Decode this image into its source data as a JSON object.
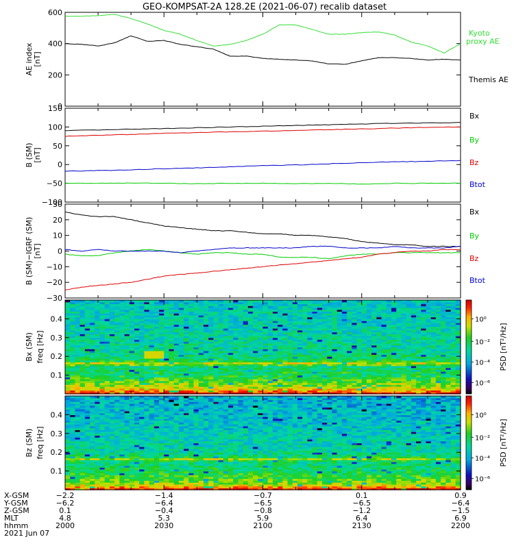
{
  "title": "GEO-KOMPSAT-2A 128.2E (2021-06-07) recalib dataset",
  "colors": {
    "black": "#000000",
    "red": "#dd0000",
    "blue": "#0000cc",
    "green": "#00cc00",
    "lightgreen": "#33dd33"
  },
  "chart_data": [
    {
      "type": "line",
      "panel": "ae",
      "ylabel": "AE index",
      "yunit": "[nT]",
      "ylim": [
        0,
        600
      ],
      "yticks": [
        "0",
        "200",
        "400",
        "600"
      ],
      "x": [
        0,
        5,
        10,
        15,
        20,
        25,
        30,
        35,
        40,
        45,
        50,
        55,
        60,
        65,
        70,
        75,
        80,
        85,
        90,
        95,
        100,
        105,
        110,
        115,
        120
      ],
      "series": [
        {
          "name": "Kyoto\nproxy AE",
          "legend_lines": [
            "Kyoto",
            "proxy AE"
          ],
          "color": "#33dd33",
          "values": [
            575,
            575,
            578,
            588,
            560,
            525,
            485,
            460,
            420,
            385,
            395,
            420,
            460,
            520,
            520,
            490,
            460,
            460,
            470,
            475,
            455,
            410,
            385,
            340,
            400
          ]
        },
        {
          "name": "Themis AE",
          "legend_lines": [
            "Themis AE"
          ],
          "color": "#000000",
          "values": [
            400,
            395,
            385,
            405,
            450,
            415,
            420,
            395,
            380,
            365,
            320,
            320,
            305,
            300,
            295,
            290,
            270,
            268,
            290,
            310,
            310,
            305,
            295,
            300,
            295
          ]
        }
      ]
    },
    {
      "type": "line",
      "panel": "bsm",
      "ylabel": "B (SM)",
      "yunit": "[nT]",
      "ylim": [
        -100,
        150
      ],
      "yticks": [
        "−100",
        "−50",
        "0",
        "50",
        "100",
        "150"
      ],
      "x": [
        0,
        10,
        20,
        30,
        40,
        50,
        60,
        70,
        80,
        90,
        100,
        110,
        120
      ],
      "series": [
        {
          "name": "Bx",
          "color": "#000000",
          "values": [
            90,
            92,
            94,
            96,
            98,
            100,
            102,
            104,
            106,
            108,
            110,
            111,
            112
          ]
        },
        {
          "name": "By",
          "color": "#00cc00",
          "values": [
            -50,
            -50,
            -49,
            -50,
            -51,
            -50,
            -50,
            -51,
            -50,
            -52,
            -50,
            -50,
            -50
          ]
        },
        {
          "name": "Bz",
          "color": "#dd0000",
          "values": [
            75,
            78,
            80,
            83,
            85,
            87,
            89,
            91,
            93,
            95,
            97,
            99,
            100
          ]
        },
        {
          "name": "Btot",
          "color": "#0000cc",
          "values": [
            -18,
            -16,
            -14,
            -11,
            -9,
            -6,
            -3,
            -1,
            2,
            5,
            7,
            9,
            11
          ]
        }
      ]
    },
    {
      "type": "line",
      "panel": "bigrf",
      "ylabel": "B (SM)−IGRF (SM)",
      "yunit": "[nT]",
      "ylim": [
        -30,
        30
      ],
      "yticks": [
        "−30",
        "−20",
        "−10",
        "0",
        "10",
        "20",
        "30"
      ],
      "x": [
        0,
        5,
        10,
        15,
        20,
        25,
        30,
        35,
        40,
        45,
        50,
        55,
        60,
        65,
        70,
        75,
        80,
        85,
        90,
        95,
        100,
        105,
        110,
        115,
        120
      ],
      "series": [
        {
          "name": "Bx",
          "color": "#000000",
          "values": [
            25,
            23,
            22,
            22,
            20,
            18,
            16,
            15,
            14,
            13,
            13,
            12,
            11,
            11,
            10,
            10,
            9,
            8,
            6,
            5,
            4,
            4,
            3,
            3,
            3
          ]
        },
        {
          "name": "By",
          "color": "#00cc00",
          "values": [
            -2,
            -3,
            -3,
            -1,
            0,
            1,
            0,
            -1,
            -2,
            -1,
            -1,
            -2,
            -2,
            -4,
            -4,
            -4,
            -5,
            -3,
            -2,
            -2,
            -1,
            -1,
            -1,
            -1,
            -1
          ]
        },
        {
          "name": "Bz",
          "color": "#dd0000",
          "values": [
            -25,
            -23,
            -22,
            -21,
            -20,
            -18,
            -16,
            -15,
            -14,
            -13,
            -12,
            -11,
            -10,
            -9,
            -8,
            -7,
            -6,
            -5,
            -4,
            -2,
            -1,
            0,
            0,
            1,
            1
          ]
        },
        {
          "name": "Btot",
          "color": "#0000cc",
          "values": [
            1,
            0,
            1,
            0,
            0,
            0,
            0,
            -1,
            0,
            1,
            2,
            2,
            2,
            2,
            2,
            3,
            3,
            2,
            2,
            2,
            3,
            2,
            2,
            2,
            3
          ]
        }
      ]
    },
    {
      "type": "heatmap",
      "panel": "spec-bx",
      "ylabel": "Bx (SM)",
      "ylabel2": "freq [Hz]",
      "ylim": [
        0,
        0.5
      ],
      "yticks": [
        "0.1",
        "0.2",
        "0.3",
        "0.4"
      ],
      "colorbar_label": "PSD [nT²/Hz]",
      "colorbar_ticks": [
        "10⁰",
        "10⁻²",
        "10⁻⁴",
        "10⁻⁶"
      ],
      "xbins": 80,
      "ybins": 50,
      "base_profile": [
        0.95,
        0.85,
        0.78,
        0.72,
        0.68,
        0.66,
        0.62,
        0.62,
        0.58,
        0.55,
        0.52,
        0.55,
        0.5,
        0.52,
        0.48,
        0.62,
        0.72,
        0.56,
        0.52,
        0.5,
        0.5,
        0.48,
        0.49,
        0.47,
        0.48,
        0.46,
        0.47,
        0.46,
        0.45,
        0.46,
        0.45,
        0.44,
        0.45,
        0.44,
        0.44,
        0.44,
        0.43,
        0.44,
        0.43,
        0.42,
        0.43,
        0.42,
        0.43,
        0.42,
        0.41,
        0.42,
        0.41,
        0.41,
        0.4,
        0.4
      ]
    },
    {
      "type": "heatmap",
      "panel": "spec-bz",
      "ylabel": "Bz (SM)",
      "ylabel2": "freq [Hz]",
      "ylim": [
        0,
        0.5
      ],
      "yticks": [
        "0.1",
        "0.2",
        "0.3",
        "0.4"
      ],
      "colorbar_label": "PSD [nT²/Hz]",
      "colorbar_ticks": [
        "10⁰",
        "10⁻²",
        "10⁻⁴",
        "10⁻⁶"
      ],
      "xbins": 80,
      "ybins": 50,
      "base_profile": [
        0.95,
        0.82,
        0.74,
        0.68,
        0.64,
        0.62,
        0.6,
        0.58,
        0.56,
        0.54,
        0.52,
        0.53,
        0.5,
        0.5,
        0.49,
        0.55,
        0.7,
        0.55,
        0.5,
        0.48,
        0.46,
        0.45,
        0.45,
        0.44,
        0.44,
        0.43,
        0.43,
        0.42,
        0.42,
        0.42,
        0.41,
        0.41,
        0.4,
        0.4,
        0.4,
        0.39,
        0.39,
        0.39,
        0.38,
        0.38,
        0.38,
        0.37,
        0.37,
        0.37,
        0.36,
        0.36,
        0.36,
        0.35,
        0.35,
        0.35
      ]
    }
  ],
  "ephemeris": {
    "row_labels": [
      "X-GSM",
      "Y-GSM",
      "Z-GSM",
      "MLT",
      "hhmm",
      "2021 Jun 07"
    ],
    "columns": [
      {
        "x": 0,
        "vals": [
          "−2.2",
          "−6.2",
          "0.1",
          "4.8",
          "2000"
        ]
      },
      {
        "x": 30,
        "vals": [
          "−1.4",
          "−6.4",
          "−0.4",
          "5.3",
          "2030"
        ]
      },
      {
        "x": 60,
        "vals": [
          "−0.7",
          "−6.5",
          "−0.8",
          "5.9",
          "2100"
        ]
      },
      {
        "x": 90,
        "vals": [
          "0.1",
          "−6.5",
          "−1.2",
          "6.4",
          "2130"
        ]
      },
      {
        "x": 120,
        "vals": [
          "0.9",
          "−6.4",
          "−1.5",
          "6.9",
          "2200"
        ]
      }
    ]
  }
}
